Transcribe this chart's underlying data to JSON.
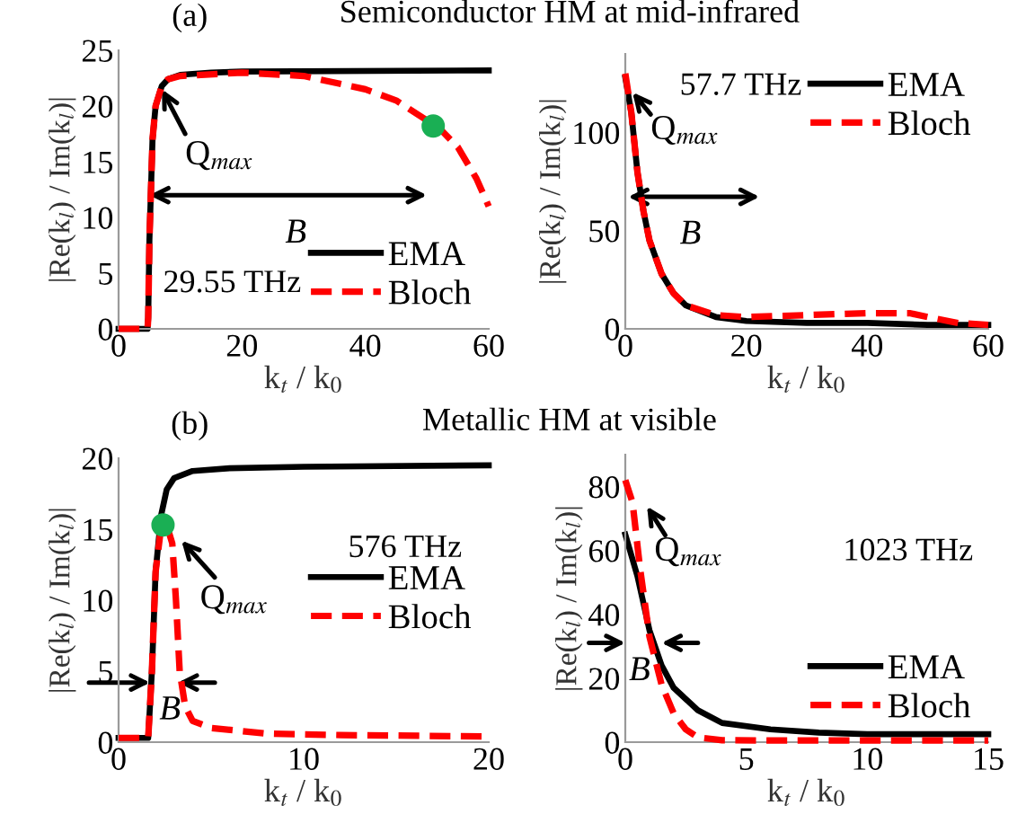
{
  "chart_data": [
    {
      "type": "line",
      "title": "Semiconductor HM at mid-infrared",
      "subtitle": "(a)",
      "xlabel": "k$_{t}$ / k$_{0}$",
      "ylabel": "|Re(k$_{l}$) / Im(k$_{l}$)|",
      "xlim": [
        0,
        60
      ],
      "xticks": [
        0,
        20,
        40,
        60
      ],
      "ylim": [
        0,
        25
      ],
      "yticks": [
        0,
        5,
        10,
        15,
        20,
        25
      ],
      "legend": "bottom right",
      "grid": false,
      "annotations": [
        "29.55 THz",
        "Q$_{max}$",
        "B"
      ],
      "series": [
        {
          "name": "EMA",
          "color": "#000000",
          "line_style": "solid",
          "x": [
            0,
            4.7,
            4.8,
            5,
            5.5,
            6,
            7,
            8,
            10,
            15,
            20,
            60
          ],
          "values": [
            0,
            0,
            1,
            8,
            17,
            20,
            21.8,
            22.4,
            22.8,
            23,
            23.1,
            23.2
          ]
        },
        {
          "name": "Bloch",
          "color": "#ff0000",
          "line_style": "dashed",
          "x": [
            0,
            4.7,
            4.8,
            5,
            5.5,
            6,
            7,
            8,
            10,
            20,
            30,
            40,
            45,
            50,
            52,
            55,
            58,
            60
          ],
          "values": [
            0,
            0,
            1,
            8,
            17,
            20,
            21.8,
            22.4,
            22.7,
            23,
            22.7,
            21.5,
            20.5,
            18.7,
            18,
            16.3,
            13.5,
            11
          ]
        },
        {
          "type": "scatter",
          "color": "#1aaf54",
          "x": [
            51
          ],
          "values": [
            18.2
          ]
        }
      ]
    },
    {
      "type": "line",
      "xlabel": "k$_{t}$ / k$_{0}$",
      "ylabel": "|Re(k$_{l}$) / Im(k$_{l}$)|",
      "xlim": [
        0,
        60
      ],
      "xticks": [
        0,
        20,
        40,
        60
      ],
      "ylim": [
        0,
        140
      ],
      "yticks": [
        0,
        50,
        100
      ],
      "legend": "top right",
      "grid": false,
      "annotations": [
        "57.7 THz",
        "Q$_{max}$",
        "B"
      ],
      "series": [
        {
          "name": "EMA",
          "color": "#000000",
          "line_style": "solid",
          "x": [
            0,
            1,
            2,
            3,
            4,
            6,
            8,
            10,
            15,
            20,
            30,
            40,
            50,
            60
          ],
          "values": [
            128,
            110,
            80,
            60,
            45,
            28,
            18,
            12,
            6,
            4,
            3,
            3,
            2,
            2
          ]
        },
        {
          "name": "Bloch",
          "color": "#ff0000",
          "line_style": "dashed",
          "x": [
            0,
            1,
            2,
            3,
            4,
            6,
            8,
            10,
            15,
            20,
            30,
            40,
            47,
            50,
            55,
            60
          ],
          "values": [
            130,
            110,
            80,
            60,
            45,
            28,
            18,
            12,
            7,
            6,
            7,
            8,
            8,
            6,
            3,
            2
          ]
        }
      ]
    },
    {
      "type": "line",
      "title": "Metallic HM at visible",
      "subtitle": "(b)",
      "xlabel": "k$_{t}$ / k$_{0}$",
      "ylabel": "|Re(k$_{l}$) / Im(k$_{l}$)|",
      "xlim": [
        0,
        20
      ],
      "xticks": [
        0,
        10,
        20
      ],
      "ylim": [
        0,
        20
      ],
      "yticks": [
        0,
        5,
        10,
        15,
        20
      ],
      "legend": "right",
      "grid": false,
      "annotations": [
        "576 THz",
        "Q$_{max}$",
        "B"
      ],
      "series": [
        {
          "name": "EMA",
          "color": "#000000",
          "line_style": "solid",
          "x": [
            0,
            1.6,
            1.8,
            2,
            2.3,
            2.6,
            3,
            4,
            6,
            10,
            20
          ],
          "values": [
            0.3,
            0.3,
            5,
            12,
            16,
            17.8,
            18.6,
            19.1,
            19.3,
            19.4,
            19.5
          ]
        },
        {
          "name": "Bloch",
          "color": "#ff0000",
          "line_style": "dashed",
          "x": [
            0,
            1.6,
            1.8,
            2,
            2.3,
            2.6,
            2.9,
            3.1,
            3.3,
            3.6,
            4,
            5,
            8,
            12,
            20
          ],
          "values": [
            0.3,
            0.3,
            5,
            12,
            15.2,
            15.3,
            14,
            10,
            5,
            2.5,
            1.5,
            1,
            0.6,
            0.5,
            0.4
          ]
        },
        {
          "type": "scatter",
          "color": "#1aaf54",
          "x": [
            2.4
          ],
          "values": [
            15.3
          ]
        }
      ]
    },
    {
      "type": "line",
      "xlabel": "k$_{t}$ / k$_{0}$",
      "ylabel": "|Re(k$_{l}$) / Im(k$_{l}$)|",
      "xlim": [
        0,
        15
      ],
      "xticks": [
        0,
        5,
        10,
        15
      ],
      "ylim": [
        0,
        90
      ],
      "yticks": [
        0,
        20,
        40,
        60,
        80
      ],
      "legend": "bottom right",
      "grid": false,
      "annotations": [
        "1023 THz",
        "Q$_{max}$",
        "B"
      ],
      "series": [
        {
          "name": "EMA",
          "color": "#000000",
          "line_style": "solid",
          "x": [
            0,
            0.5,
            1,
            1.5,
            2,
            3,
            4,
            6,
            8,
            10,
            15
          ],
          "values": [
            65,
            52,
            35,
            24,
            17,
            10,
            6,
            4,
            3,
            2.5,
            2.5
          ]
        },
        {
          "name": "Bloch",
          "color": "#ff0000",
          "line_style": "dashed",
          "x": [
            0,
            0.3,
            0.6,
            1,
            1.5,
            2,
            2.5,
            3,
            4,
            6,
            15
          ],
          "values": [
            82,
            75,
            55,
            33,
            18,
            9,
            4,
            1.5,
            0.6,
            0.5,
            0.5
          ]
        }
      ]
    }
  ]
}
